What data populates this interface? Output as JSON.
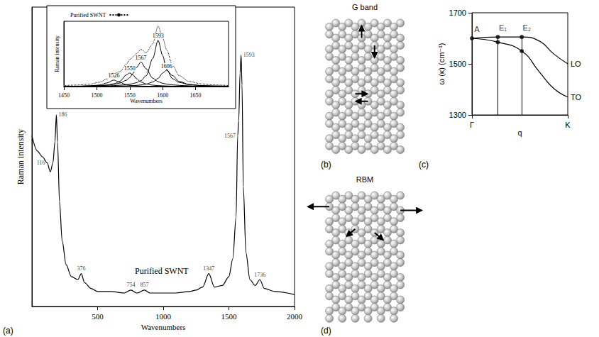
{
  "chart_data": [
    {
      "panel": "(a)",
      "type": "line",
      "title": "Purified SWNT",
      "x_label": "Wavenumbers",
      "y_label": "Raman intensity",
      "x": [
        0,
        40,
        80,
        116,
        140,
        160,
        175,
        186,
        195,
        210,
        230,
        260,
        300,
        350,
        376,
        400,
        450,
        500,
        600,
        700,
        754,
        800,
        857,
        900,
        1000,
        1100,
        1200,
        1250,
        1300,
        1347,
        1390,
        1450,
        1500,
        1530,
        1555,
        1567,
        1575,
        1585,
        1593,
        1600,
        1610,
        1630,
        1660,
        1700,
        1736,
        1770,
        1850,
        2000
      ],
      "values": [
        57,
        52,
        50,
        48,
        45,
        48,
        55,
        64,
        55,
        35,
        22,
        14,
        10,
        9,
        11,
        8,
        6,
        5,
        5,
        4.5,
        5.5,
        4.5,
        5.5,
        4.5,
        4.5,
        4.5,
        5,
        5.5,
        6.5,
        11,
        6.5,
        7,
        10,
        16,
        30,
        57,
        62,
        78,
        84,
        74,
        40,
        18,
        9,
        7,
        9,
        6,
        5,
        4
      ],
      "color": "#000000",
      "xlim": [
        0,
        2000
      ],
      "xticks": [
        500,
        1000,
        1500,
        2000
      ],
      "ylim": [
        0,
        100
      ],
      "tick_labels": "x",
      "grid": false,
      "annotations": [
        {
          "x": 116,
          "label": "116"
        },
        {
          "x": 186,
          "label": "186"
        },
        {
          "x": 376,
          "label": "376"
        },
        {
          "x": 754,
          "label": "754"
        },
        {
          "x": 857,
          "label": "857"
        },
        {
          "x": 1347,
          "label": "1347"
        },
        {
          "x": 1567,
          "label": "1567"
        },
        {
          "x": 1593,
          "label": "1593"
        },
        {
          "x": 1736,
          "label": "1736"
        }
      ],
      "inset": {
        "type": "line",
        "x_label": "Wavenumbers",
        "y_label": "Raman intensity",
        "x": [
          1450,
          1470,
          1490,
          1505,
          1515,
          1526,
          1535,
          1545,
          1550,
          1555,
          1560,
          1567,
          1575,
          1585,
          1593,
          1600,
          1606,
          1615,
          1625,
          1640,
          1660,
          1680,
          1700
        ],
        "series": [
          {
            "name": "Purified SWNT",
            "color": "#000000",
            "line_style": "dotted",
            "values": [
              1.8,
              2.8,
              4.6,
              8.2,
              13.7,
              23.7,
              27.4,
              41.3,
              49.9,
              54.8,
              60.3,
              68.2,
              62.5,
              78.6,
              111.2,
              89.6,
              67.5,
              39,
              20.2,
              9.4,
              4.7,
              2.9,
              2.0
            ]
          },
          {
            "label": "1526",
            "color": "#000000",
            "line_style": "solid",
            "values": [
              0.3,
              0.5,
              1.2,
              3.0,
              6.5,
              12,
              7.7,
              3.4,
              2.4,
              1.8,
              1.3,
              0.9,
              0.7,
              0.5,
              0.4,
              0.3,
              0.3,
              0.2,
              0.2,
              0.1,
              0.1,
              0.1,
              0.1
            ]
          },
          {
            "label": "1550",
            "color": "#000000",
            "line_style": "solid",
            "values": [
              0.4,
              0.6,
              1.0,
              1.7,
              2.6,
              5,
              9.8,
              21.4,
              25,
              21.4,
              14.8,
              8.3,
              4.7,
              2.6,
              1.8,
              1.4,
              1.1,
              0.8,
              0.6,
              0.4,
              0.3,
              0.2,
              0.2
            ]
          },
          {
            "label": "1567",
            "color": "#000000",
            "line_style": "solid",
            "values": [
              0.5,
              0.8,
              1.2,
              1.9,
              2.6,
              4.1,
              6.4,
              11.7,
              16.6,
              24.3,
              34.9,
              45,
              32.6,
              15.4,
              9,
              6.1,
              4.5,
              3.1,
              2.2,
              1.4,
              0.9,
              0.6,
              0.4
            ]
          },
          {
            "label": "1593",
            "color": "#000000",
            "line_style": "solid",
            "values": [
              0.4,
              0.6,
              0.8,
              1.1,
              1.4,
              1.8,
              2.5,
              3.5,
              4.4,
              5.5,
              7.1,
              11,
              20,
              51.8,
              85,
              57,
              31.6,
              14.6,
              7.6,
              3.7,
              1.8,
              1.1,
              0.7
            ]
          },
          {
            "label": "1606",
            "color": "#000000",
            "line_style": "solid",
            "values": [
              0.2,
              0.3,
              0.4,
              0.5,
              0.6,
              0.8,
              1.0,
              1.3,
              1.5,
              1.8,
              2.2,
              3,
              4.5,
              8.3,
              15,
              24.8,
              30,
              20.3,
              9.6,
              3.8,
              1.6,
              0.9,
              0.6
            ]
          }
        ],
        "xlim": [
          1450,
          1700
        ],
        "xticks": [
          1450,
          1500,
          1550,
          1600,
          1650
        ],
        "ylim": [
          0,
          120
        ],
        "tick_labels": "x",
        "grid": false,
        "legend": "top-left"
      }
    },
    {
      "panel": "(c)",
      "type": "line",
      "x_label": "q",
      "y_label": "ω (κ) (cm⁻¹)",
      "x": [
        0,
        0.27,
        0.52,
        0.7,
        0.85,
        1
      ],
      "series": [
        {
          "name": "LO",
          "color": "#000000",
          "line_style": "solid",
          "values": [
            1600,
            1605,
            1605,
            1590,
            1540,
            1500
          ]
        },
        {
          "name": "TO",
          "color": "#000000",
          "line_style": "solid",
          "values": [
            1600,
            1585,
            1550,
            1470,
            1405,
            1370
          ]
        }
      ],
      "points": [
        {
          "label": "A",
          "x": 0,
          "y": 1600
        },
        {
          "label": "E₁",
          "x": 0.27,
          "y": 1605
        },
        {
          "label": null,
          "x": 0.27,
          "y": 1585
        },
        {
          "label": "E₂",
          "x": 0.52,
          "y": 1605
        },
        {
          "label": null,
          "x": 0.52,
          "y": 1550
        }
      ],
      "xlim": [
        0,
        1
      ],
      "xticks": [
        {
          "value": 0,
          "label": "Γ"
        },
        {
          "value": 1,
          "label": "K"
        }
      ],
      "ylim": [
        1300,
        1700
      ],
      "yticks": [
        1300,
        1500,
        1700
      ],
      "grid": false
    }
  ],
  "diagrams": [
    {
      "panel": "(b)",
      "title": "G band"
    },
    {
      "panel": "(d)",
      "title": "RBM"
    }
  ]
}
